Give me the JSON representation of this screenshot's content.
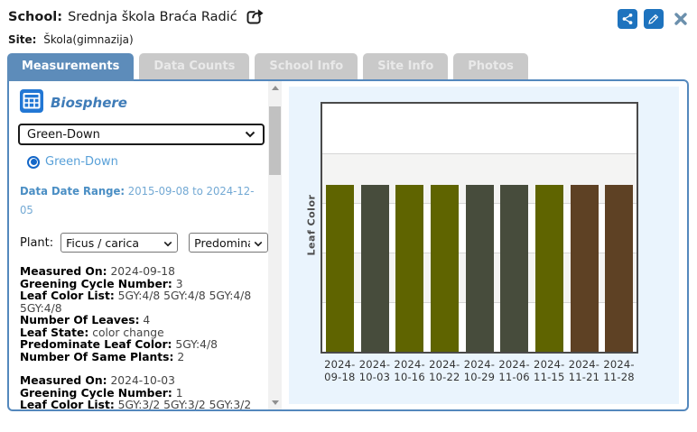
{
  "header": {
    "school_label": "School:",
    "school_name": "Srednja škola Braća Radić",
    "site_label": "Site:",
    "site_name": "Škola(gimnazija)"
  },
  "tabs": [
    {
      "label": "Measurements",
      "active": true
    },
    {
      "label": "Data Counts",
      "active": false
    },
    {
      "label": "School Info",
      "active": false
    },
    {
      "label": "Site Info",
      "active": false
    },
    {
      "label": "Photos",
      "active": false
    }
  ],
  "panel": {
    "section_title": "Biosphere",
    "protocol_select_value": "Green-Down",
    "radio_label": "Green-Down",
    "date_range_label": "Data Date Range:",
    "date_range_value": "2015-09-08 to 2024-12-05",
    "plant_label": "Plant:",
    "plant_select_value": "Ficus / carica",
    "measure_select_value": "Predomina",
    "measurements": [
      {
        "fields": [
          {
            "label": "Measured On",
            "value": "2024-09-18"
          },
          {
            "label": "Greening Cycle Number",
            "value": "3"
          },
          {
            "label": "Leaf Color List",
            "value": "5GY:4/8 5GY:4/8 5GY:4/8 5GY:4/8"
          },
          {
            "label": "Number Of Leaves",
            "value": "4"
          },
          {
            "label": "Leaf State",
            "value": "color change"
          },
          {
            "label": "Predominate Leaf Color",
            "value": "5GY:4/8"
          },
          {
            "label": "Number Of Same Plants",
            "value": "2"
          }
        ]
      },
      {
        "fields": [
          {
            "label": "Measured On",
            "value": "2024-10-03"
          },
          {
            "label": "Greening Cycle Number",
            "value": "1"
          },
          {
            "label": "Leaf Color List",
            "value": "5GY:3/2 5GY:3/2 5GY:3/2"
          }
        ]
      }
    ]
  },
  "chart_data": {
    "type": "bar",
    "title": "",
    "ylabel": "Leaf Color",
    "categories": [
      "2024-09-18",
      "2024-10-03",
      "2024-10-16",
      "2024-10-22",
      "2024-10-29",
      "2024-11-06",
      "2024-11-15",
      "2024-11-21",
      "2024-11-28"
    ],
    "values": [
      1,
      1,
      1,
      1,
      1,
      1,
      1,
      1,
      1
    ],
    "bar_colors": [
      "#5f6400",
      "#474c3c",
      "#5f6400",
      "#5f6400",
      "#474c3c",
      "#474c3c",
      "#5f6400",
      "#5e4124",
      "#5e4124"
    ],
    "leaf_colors": [
      "5GY:4/8",
      "5GY:3/2",
      "5GY:4/8",
      "5GY:4/8",
      "5GY:3/2",
      "5GY:3/2",
      "5GY:4/8",
      "brown",
      "brown"
    ],
    "grid": true,
    "legend": false
  },
  "colors": {
    "accent_blue": "#1e73be",
    "tab_active": "#5d8cba",
    "container_border": "#5488bd",
    "chart_panel_bg": "#eaf4fd"
  }
}
